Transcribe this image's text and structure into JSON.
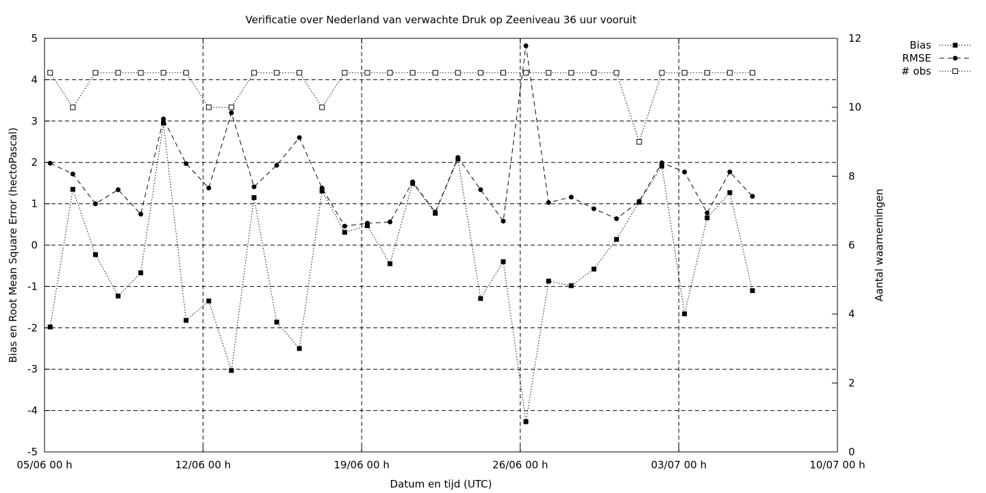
{
  "chart_data": {
    "type": "line",
    "title": "Verificatie over Nederland van verwachte Druk op Zeeniveau 36 uur vooruit",
    "xlabel": "Datum en tijd (UTC)",
    "ylabel": "Bias en Root Mean Square Error (hectoPascal)",
    "y2label": "Aantal waarnemingen",
    "x_range_days": [
      0,
      35
    ],
    "ylim": [
      -5,
      5
    ],
    "y2lim": [
      0,
      12
    ],
    "x_ticks": [
      {
        "day": 0,
        "label": "05/06 00 h"
      },
      {
        "day": 7,
        "label": "12/06 00 h"
      },
      {
        "day": 14,
        "label": "19/06 00 h"
      },
      {
        "day": 21,
        "label": "26/06 00 h"
      },
      {
        "day": 28,
        "label": "03/07 00 h"
      },
      {
        "day": 35,
        "label": "10/07 00 h"
      }
    ],
    "y_ticks": [
      "-5",
      "-4",
      "-3",
      "-2",
      "-1",
      "0",
      "1",
      "2",
      "3",
      "4",
      "5"
    ],
    "y2_ticks": [
      "0",
      "2",
      "4",
      "6",
      "8",
      "10",
      "12"
    ],
    "grid": true,
    "legend_position": "top-right",
    "x_days": [
      0.25,
      1.25,
      2.25,
      3.25,
      4.25,
      5.25,
      6.25,
      7.25,
      8.25,
      9.25,
      10.25,
      11.25,
      12.25,
      13.25,
      14.25,
      15.25,
      16.25,
      17.25,
      18.25,
      19.25,
      20.25,
      21.25,
      22.25,
      23.25,
      24.25,
      25.25,
      26.25,
      27.25,
      28.25,
      29.25,
      30.25,
      31.25
    ],
    "series": [
      {
        "name": "Bias",
        "axis": "y",
        "marker": "filled-square",
        "line": "dotted",
        "values": [
          -1.98,
          1.35,
          -0.23,
          -1.23,
          -0.67,
          2.95,
          -1.82,
          -1.35,
          -3.03,
          1.15,
          -1.86,
          -2.5,
          1.31,
          0.31,
          0.47,
          -0.45,
          1.49,
          0.77,
          2.08,
          -1.29,
          -0.4,
          -4.27,
          -0.87,
          -0.98,
          -0.58,
          0.14,
          1.04,
          1.91,
          -1.66,
          0.66,
          1.27,
          -1.1
        ]
      },
      {
        "name": "RMSE",
        "axis": "y",
        "marker": "filled-circle",
        "line": "dashed",
        "values": [
          1.98,
          1.72,
          1.0,
          1.34,
          0.75,
          3.05,
          1.97,
          1.38,
          3.2,
          1.41,
          1.93,
          2.6,
          1.38,
          0.46,
          0.53,
          0.56,
          1.53,
          0.8,
          2.12,
          1.34,
          0.58,
          4.82,
          1.03,
          1.16,
          0.88,
          0.64,
          1.06,
          1.99,
          1.77,
          0.78,
          1.77,
          1.18
        ]
      },
      {
        "name": "# obs",
        "axis": "y2",
        "marker": "open-square",
        "line": "dotted",
        "values": [
          11,
          10,
          11,
          11,
          11,
          11,
          11,
          10,
          10,
          11,
          11,
          11,
          10,
          11,
          11,
          11,
          11,
          11,
          11,
          11,
          11,
          11,
          11,
          11,
          11,
          11,
          9,
          11,
          11,
          11,
          11,
          11
        ]
      }
    ]
  }
}
